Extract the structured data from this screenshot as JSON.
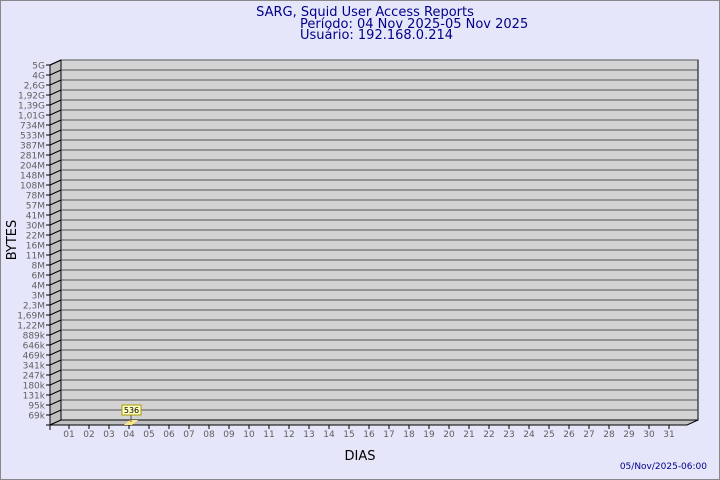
{
  "chart_data": {
    "type": "bar",
    "title": "SARG, Squid User Access Reports",
    "subtitle_lines": [
      "Período: 04 Nov 2025-05 Nov 2025",
      "Usuário: 192.168.0.214"
    ],
    "xlabel": "DIAS",
    "ylabel": "BYTES",
    "footer": "05/Nov/2025-06:00",
    "y_scale": "log",
    "y_tick_labels": [
      "5G",
      "4G",
      "2,6G",
      "1,92G",
      "1,39G",
      "1,01G",
      "734M",
      "533M",
      "387M",
      "281M",
      "204M",
      "148M",
      "108M",
      "78M",
      "57M",
      "41M",
      "30M",
      "22M",
      "16M",
      "11M",
      "8M",
      "6M",
      "4M",
      "3M",
      "2,3M",
      "1,69M",
      "1,22M",
      "889k",
      "646k",
      "469k",
      "341k",
      "247k",
      "180k",
      "131k",
      "95k",
      "69k"
    ],
    "categories": [
      "01",
      "02",
      "03",
      "04",
      "05",
      "06",
      "07",
      "08",
      "09",
      "10",
      "11",
      "12",
      "13",
      "14",
      "15",
      "16",
      "17",
      "18",
      "19",
      "20",
      "21",
      "22",
      "23",
      "24",
      "25",
      "26",
      "27",
      "28",
      "29",
      "30",
      "31"
    ],
    "values": [
      null,
      null,
      null,
      536,
      null,
      null,
      null,
      null,
      null,
      null,
      null,
      null,
      null,
      null,
      null,
      null,
      null,
      null,
      null,
      null,
      null,
      null,
      null,
      null,
      null,
      null,
      null,
      null,
      null,
      null,
      null
    ],
    "data_labels": {
      "04": "536"
    },
    "grid": true,
    "colors": {
      "background": "#e6e6fa",
      "panel": "#d3d3d3",
      "wall": "#c0c0c0",
      "bar": "#ffe680",
      "title": "#00008b",
      "tick_text": "#606060"
    }
  }
}
